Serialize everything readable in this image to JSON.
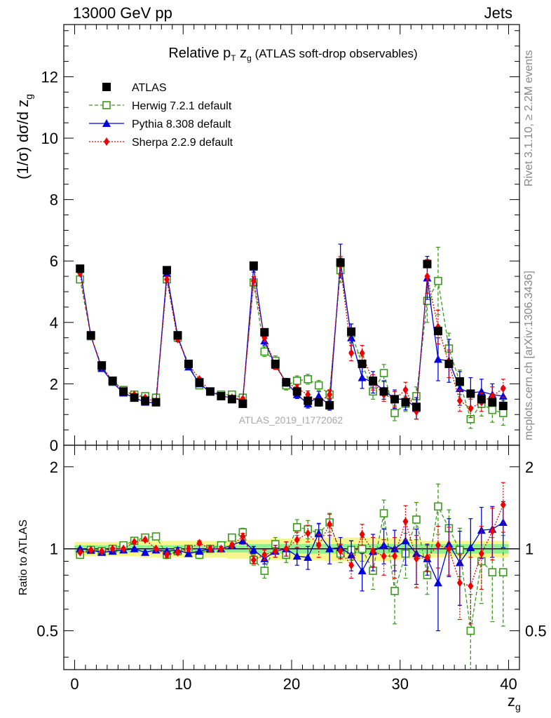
{
  "header": {
    "left": "13000 GeV pp",
    "right": "Jets"
  },
  "side_labels": {
    "top": "Rivet 3.1.10, ≥ 2.2M events",
    "bottom": "mcplots.cern.ch [arXiv:1306.3436]"
  },
  "colors": {
    "atlas": "#000000",
    "herwig": "#3a9a1a",
    "pythia": "#0000dd",
    "sherpa": "#ee0000",
    "band_inner": "#8ef08e",
    "band_outer": "#f6f68c",
    "watermark": "#a8a8a8"
  },
  "chart_data": {
    "type": "scatter",
    "title_parts": [
      "Relative p",
      "T",
      " z",
      "g",
      " (ATLAS soft-drop observables)"
    ],
    "ylabel_main": "(1/σ) dσ/d z",
    "ylabel_main_sub": "g",
    "ylabel_ratio": "Ratio to ATLAS",
    "xlabel": "z",
    "xlabel_sub": "g",
    "watermark": "ATLAS_2019_I1772062",
    "xlim": [
      -1,
      41
    ],
    "ylim_main": [
      0,
      13.7
    ],
    "ylim_ratio": [
      0.36,
      2.4
    ],
    "xticks": [
      0,
      10,
      20,
      30,
      40
    ],
    "yticks_main": [
      0,
      2,
      4,
      6,
      8,
      10,
      12
    ],
    "yticks_ratio": [
      0.5,
      1,
      2
    ],
    "x": [
      0.5,
      1.5,
      2.5,
      3.5,
      4.5,
      5.5,
      6.5,
      7.5,
      8.5,
      9.5,
      10.5,
      11.5,
      12.5,
      13.5,
      14.5,
      15.5,
      16.5,
      17.5,
      18.5,
      19.5,
      20.5,
      21.5,
      22.5,
      23.5,
      24.5,
      25.5,
      26.5,
      27.5,
      28.5,
      29.5,
      30.5,
      31.5,
      32.5,
      33.5,
      34.5,
      35.5,
      36.5,
      37.5,
      38.5,
      39.5
    ],
    "data_band": {
      "inner": [
        0.03,
        0.03,
        0.03,
        0.03,
        0.03,
        0.03,
        0.03,
        0.03,
        0.03,
        0.03,
        0.03,
        0.03,
        0.03,
        0.03,
        0.03,
        0.03,
        0.04,
        0.04,
        0.04,
        0.04,
        0.04,
        0.04,
        0.04,
        0.04,
        0.04,
        0.04,
        0.04,
        0.04,
        0.04,
        0.04,
        0.04,
        0.04,
        0.04,
        0.04,
        0.04,
        0.04,
        0.04,
        0.04,
        0.04,
        0.04
      ],
      "outer": [
        0.06,
        0.06,
        0.06,
        0.06,
        0.06,
        0.06,
        0.07,
        0.07,
        0.07,
        0.07,
        0.07,
        0.07,
        0.07,
        0.07,
        0.08,
        0.08,
        0.08,
        0.08,
        0.09,
        0.09,
        0.09,
        0.09,
        0.09,
        0.1,
        0.1,
        0.1,
        0.1,
        0.1,
        0.1,
        0.09,
        0.08,
        0.08,
        0.07,
        0.07,
        0.07,
        0.07,
        0.07,
        0.07,
        0.07,
        0.07
      ]
    },
    "series": [
      {
        "name": "ATLAS",
        "marker": "square-filled",
        "line": "none",
        "values": [
          5.75,
          3.58,
          2.6,
          2.1,
          1.75,
          1.55,
          1.45,
          1.4,
          5.7,
          3.58,
          2.65,
          2.05,
          1.75,
          1.6,
          1.5,
          1.35,
          5.85,
          3.68,
          2.65,
          2.05,
          1.75,
          1.45,
          1.4,
          1.3,
          5.95,
          3.7,
          2.65,
          2.1,
          1.75,
          1.5,
          1.4,
          1.25,
          5.9,
          3.72,
          2.65,
          2.08,
          1.68,
          1.5,
          1.4,
          1.28
        ],
        "errors": [
          0.04,
          0.03,
          0.02,
          0.02,
          0.02,
          0.02,
          0.02,
          0.02,
          0.05,
          0.04,
          0.03,
          0.03,
          0.02,
          0.02,
          0.02,
          0.02,
          0.06,
          0.04,
          0.03,
          0.03,
          0.03,
          0.03,
          0.03,
          0.03,
          0.07,
          0.05,
          0.04,
          0.04,
          0.04,
          0.04,
          0.04,
          0.04,
          0.08,
          0.06,
          0.05,
          0.05,
          0.05,
          0.05,
          0.05,
          0.05
        ],
        "ratio": [
          1,
          1,
          1,
          1,
          1,
          1,
          1,
          1,
          1,
          1,
          1,
          1,
          1,
          1,
          1,
          1,
          1,
          1,
          1,
          1,
          1,
          1,
          1,
          1,
          1,
          1,
          1,
          1,
          1,
          1,
          1,
          1,
          1,
          1,
          1,
          1,
          1,
          1,
          1,
          1
        ]
      },
      {
        "name": "Herwig 7.2.1 default",
        "marker": "square-open",
        "line": "dashed",
        "values": [
          5.4,
          3.55,
          2.55,
          2.1,
          1.8,
          1.65,
          1.6,
          1.55,
          5.4,
          3.5,
          2.65,
          1.95,
          1.75,
          1.65,
          1.65,
          1.55,
          5.3,
          3.05,
          2.75,
          1.95,
          2.1,
          2.15,
          1.95,
          1.65,
          5.7,
          3.65,
          2.65,
          1.75,
          2.35,
          1.05,
          1.35,
          1.6,
          4.7,
          5.35,
          3.15,
          2.05,
          0.85,
          1.35,
          1.15,
          1.05
        ],
        "errors": [
          0.1,
          0.08,
          0.07,
          0.06,
          0.06,
          0.06,
          0.06,
          0.06,
          0.12,
          0.1,
          0.09,
          0.08,
          0.07,
          0.07,
          0.07,
          0.08,
          0.18,
          0.16,
          0.16,
          0.15,
          0.16,
          0.16,
          0.16,
          0.16,
          0.4,
          0.3,
          0.25,
          0.25,
          0.28,
          0.25,
          0.25,
          0.3,
          0.7,
          1.1,
          0.5,
          0.4,
          0.3,
          0.4,
          0.4,
          0.4
        ],
        "ratio": [
          0.95,
          0.99,
          0.98,
          1.0,
          1.03,
          1.07,
          1.1,
          1.11,
          0.95,
          0.98,
          1.0,
          0.95,
          1.0,
          1.03,
          1.1,
          1.15,
          0.91,
          0.83,
          1.04,
          0.95,
          1.2,
          1.18,
          1.14,
          1.25,
          0.96,
          0.99,
          1.0,
          0.83,
          1.35,
          0.7,
          0.96,
          1.28,
          0.8,
          1.43,
          1.19,
          0.99,
          0.5,
          0.9,
          0.82,
          0.82
        ],
        "ratio_errors": [
          0.02,
          0.02,
          0.02,
          0.02,
          0.02,
          0.02,
          0.02,
          0.02,
          0.03,
          0.03,
          0.03,
          0.03,
          0.03,
          0.03,
          0.03,
          0.04,
          0.04,
          0.05,
          0.06,
          0.06,
          0.08,
          0.09,
          0.09,
          0.1,
          0.07,
          0.08,
          0.1,
          0.12,
          0.16,
          0.17,
          0.18,
          0.2,
          0.12,
          0.3,
          0.2,
          0.2,
          0.18,
          0.27,
          0.28,
          0.3
        ]
      },
      {
        "name": "Pythia 8.308 default",
        "marker": "triangle-filled",
        "line": "solid",
        "values": [
          5.75,
          3.55,
          2.5,
          2.05,
          1.7,
          1.55,
          1.4,
          1.38,
          5.6,
          3.55,
          2.55,
          2.0,
          1.75,
          1.6,
          1.55,
          1.45,
          5.8,
          3.4,
          2.6,
          2.05,
          1.65,
          1.35,
          1.6,
          1.3,
          6.0,
          3.5,
          2.2,
          2.05,
          1.8,
          1.5,
          1.5,
          1.2,
          5.45,
          2.8,
          2.75,
          1.85,
          1.7,
          1.75,
          1.65,
          1.6
        ],
        "errors": [
          0.08,
          0.06,
          0.05,
          0.05,
          0.04,
          0.04,
          0.04,
          0.04,
          0.1,
          0.08,
          0.07,
          0.06,
          0.06,
          0.06,
          0.06,
          0.07,
          0.16,
          0.14,
          0.13,
          0.13,
          0.13,
          0.14,
          0.15,
          0.16,
          0.55,
          0.45,
          0.35,
          0.35,
          0.3,
          0.3,
          0.35,
          0.35,
          0.7,
          0.7,
          0.7,
          0.55,
          0.5,
          0.4,
          0.35,
          0.3
        ],
        "ratio": [
          1.0,
          0.99,
          0.97,
          0.98,
          0.99,
          1.0,
          0.97,
          0.99,
          0.98,
          0.99,
          0.96,
          0.98,
          1.0,
          1.0,
          1.03,
          1.07,
          0.99,
          0.92,
          0.98,
          1.0,
          0.94,
          0.93,
          1.14,
          1.0,
          1.01,
          0.95,
          0.83,
          0.98,
          1.03,
          1.0,
          1.07,
          0.96,
          0.92,
          0.75,
          1.04,
          0.89,
          1.01,
          1.17,
          1.18,
          1.25
        ],
        "ratio_errors": [
          0.01,
          0.01,
          0.01,
          0.01,
          0.01,
          0.01,
          0.01,
          0.01,
          0.02,
          0.02,
          0.02,
          0.02,
          0.02,
          0.02,
          0.02,
          0.03,
          0.03,
          0.04,
          0.05,
          0.06,
          0.07,
          0.09,
          0.1,
          0.12,
          0.09,
          0.12,
          0.13,
          0.15,
          0.15,
          0.17,
          0.2,
          0.22,
          0.12,
          0.25,
          0.25,
          0.27,
          0.28,
          0.25,
          0.25,
          0.24
        ]
      },
      {
        "name": "Sherpa 2.2.9 default",
        "marker": "diamond-filled",
        "line": "dotted",
        "values": [
          5.6,
          3.55,
          2.55,
          2.1,
          1.75,
          1.65,
          1.55,
          1.4,
          5.4,
          3.45,
          2.65,
          2.15,
          1.75,
          1.6,
          1.55,
          1.5,
          5.35,
          3.5,
          2.6,
          2.05,
          1.85,
          1.65,
          1.4,
          1.65,
          5.85,
          3.0,
          3.0,
          2.05,
          1.65,
          1.5,
          1.8,
          1.1,
          5.5,
          3.85,
          2.65,
          1.45,
          1.2,
          1.4,
          1.6,
          1.85
        ],
        "errors": [
          0.08,
          0.06,
          0.05,
          0.05,
          0.04,
          0.04,
          0.04,
          0.04,
          0.1,
          0.08,
          0.07,
          0.06,
          0.06,
          0.06,
          0.06,
          0.07,
          0.14,
          0.13,
          0.12,
          0.12,
          0.12,
          0.12,
          0.13,
          0.14,
          0.3,
          0.25,
          0.25,
          0.25,
          0.22,
          0.25,
          0.25,
          0.25,
          0.55,
          0.55,
          0.45,
          0.35,
          0.3,
          0.3,
          0.3,
          0.3
        ],
        "ratio": [
          0.97,
          0.99,
          0.98,
          1.0,
          1.0,
          1.06,
          1.08,
          1.0,
          0.95,
          0.97,
          1.0,
          1.05,
          1.0,
          1.0,
          1.03,
          1.11,
          0.91,
          0.95,
          0.98,
          1.0,
          1.08,
          1.14,
          1.03,
          1.23,
          0.98,
          0.87,
          1.13,
          0.98,
          0.94,
          0.94,
          1.26,
          0.92,
          0.93,
          1.03,
          1.0,
          0.75,
          0.73,
          0.96,
          1.16,
          1.45
        ],
        "ratio_errors": [
          0.01,
          0.01,
          0.01,
          0.01,
          0.01,
          0.01,
          0.01,
          0.01,
          0.02,
          0.02,
          0.02,
          0.02,
          0.02,
          0.02,
          0.02,
          0.03,
          0.03,
          0.04,
          0.05,
          0.06,
          0.07,
          0.08,
          0.1,
          0.11,
          0.06,
          0.09,
          0.1,
          0.12,
          0.14,
          0.16,
          0.18,
          0.2,
          0.1,
          0.18,
          0.2,
          0.2,
          0.2,
          0.25,
          0.25,
          0.3
        ]
      }
    ]
  }
}
